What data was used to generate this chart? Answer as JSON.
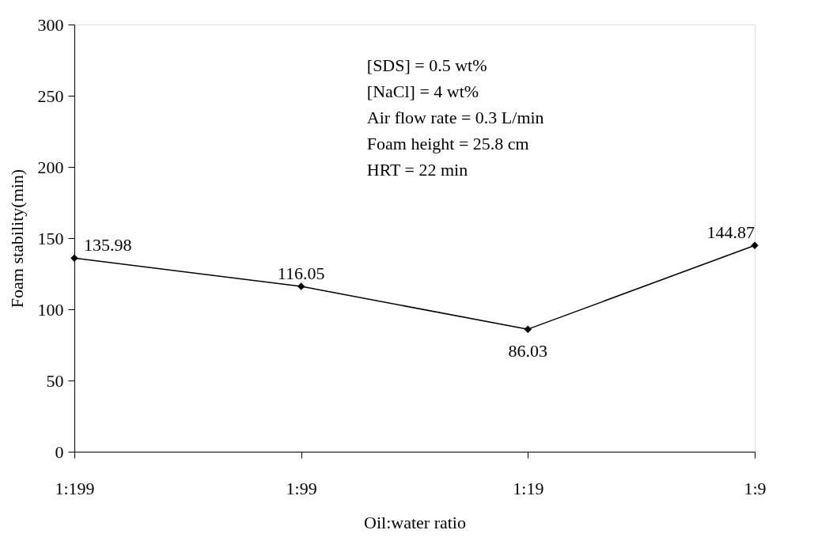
{
  "chart_data": {
    "type": "line",
    "xlabel": "Oil:water ratio",
    "ylabel": "Foam stability(min)",
    "categories": [
      "1:199",
      "1:99",
      "1:19",
      "1:9"
    ],
    "series": [
      {
        "color": "#000000",
        "values": [
          135.98,
          116.05,
          86.03,
          144.87
        ]
      }
    ],
    "ylim": [
      0,
      300
    ],
    "yticks": [
      0,
      50,
      100,
      150,
      200,
      250,
      300
    ],
    "grid": false,
    "marker": "diamond",
    "line_style": "solid",
    "data_labels": true,
    "annotations": [
      "[SDS] = 0.5 wt%",
      "[NaCl] = 4 wt%",
      "Air flow rate = 0.3 L/min",
      "Foam height = 25.8 cm",
      "HRT = 22 min"
    ]
  }
}
